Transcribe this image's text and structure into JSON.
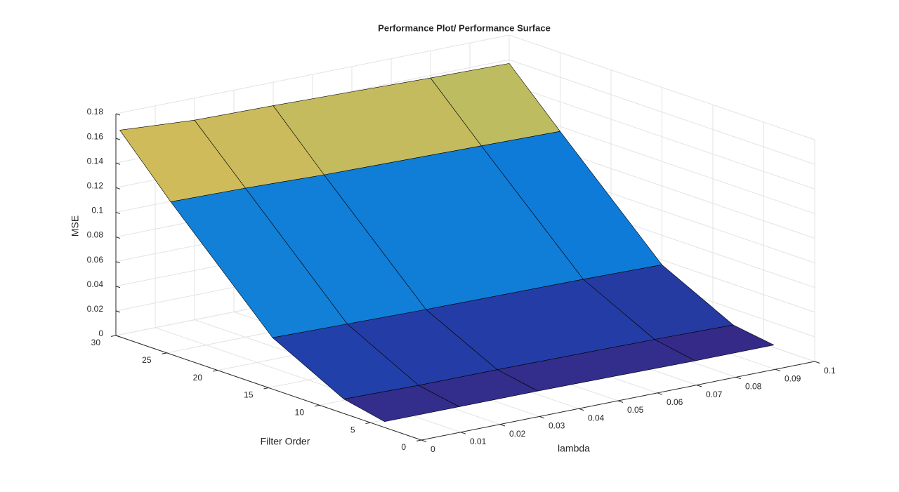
{
  "chart_data": {
    "type": "surface",
    "title": "Performance Plot/ Performance Surface",
    "xlabel": "lambda",
    "ylabel": "Filter Order",
    "zlabel": "MSE",
    "x": [
      0.001,
      0.02,
      0.04,
      0.08,
      0.1
    ],
    "y": [
      4,
      8,
      15,
      25,
      30
    ],
    "z": [
      [
        0.003,
        0.003,
        0.003,
        0.002,
        0.002
      ],
      [
        0.01,
        0.009,
        0.009,
        0.008,
        0.007
      ],
      [
        0.04,
        0.039,
        0.038,
        0.037,
        0.036
      ],
      [
        0.122,
        0.121,
        0.119,
        0.117,
        0.116
      ],
      [
        0.166,
        0.162,
        0.161,
        0.158,
        0.157
      ]
    ],
    "xlim": [
      0,
      0.1
    ],
    "ylim": [
      0,
      30
    ],
    "zlim": [
      0,
      0.18
    ],
    "xticks": [
      0,
      0.01,
      0.02,
      0.03,
      0.04,
      0.05,
      0.06,
      0.07,
      0.08,
      0.09,
      0.1
    ],
    "yticks": [
      0,
      5,
      10,
      15,
      20,
      25,
      30
    ],
    "zticks": [
      0,
      0.02,
      0.04,
      0.06,
      0.08,
      0.1,
      0.12,
      0.14,
      0.16,
      0.18
    ],
    "grid": true,
    "colormap": "parula",
    "edge_color": "#000000"
  }
}
